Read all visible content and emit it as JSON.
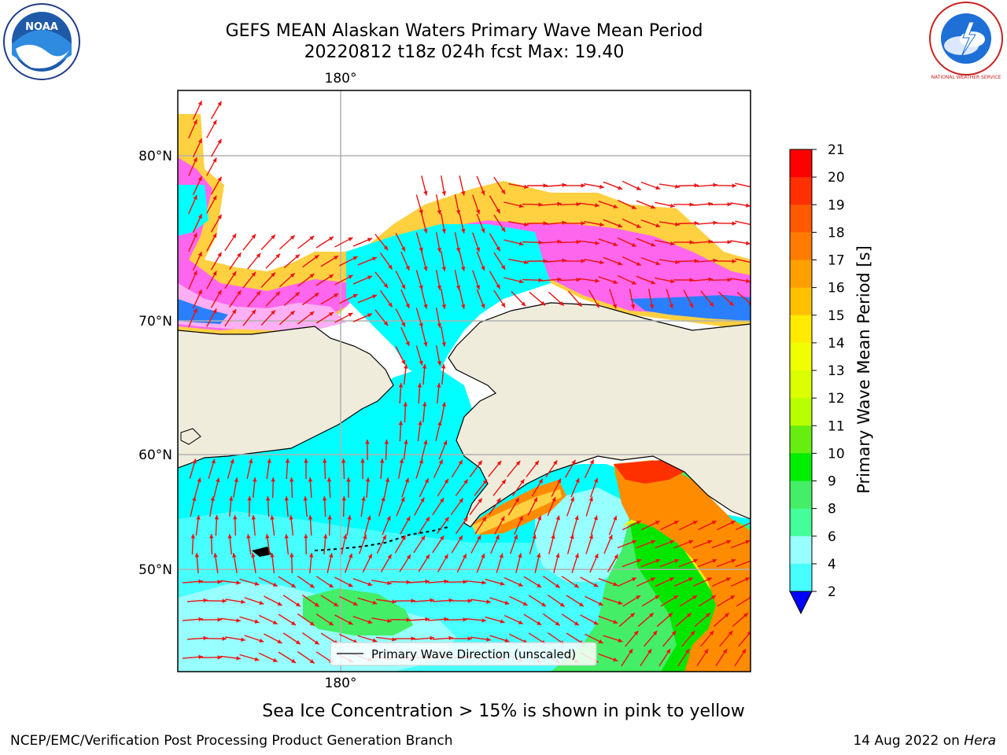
{
  "header": {
    "title_line1": "GEFS MEAN Alaskan Waters Primary Wave Mean Period",
    "title_line2": "20220812 t18z 024h fcst   Max: 19.40"
  },
  "logos": {
    "left": "NOAA",
    "right": "NATIONAL WEATHER SERVICE"
  },
  "map": {
    "lon_label_top": "180°",
    "lon_label_bottom": "180°",
    "lat_labels": [
      "80°N",
      "70°N",
      "60°N",
      "50°N"
    ],
    "legend_label": "Primary Wave Direction (unscaled)",
    "colors": {
      "land": "#efecdc",
      "ocean_cyan": "#00ffff",
      "ocean_light": "#97ffff",
      "ocean_mid": "#47ffff",
      "green": "#44ee66",
      "bright_green": "#00e600",
      "orange": "#ff8c00",
      "red_orange": "#ff4500",
      "ice_pink": "#ff55ee",
      "ice_yellow": "#ffd040",
      "arrow": "#ee1111",
      "grid": "#b0b0b0"
    }
  },
  "colorbar": {
    "label": "Primary Wave Mean Period [s]",
    "ticks": [
      "21",
      "20",
      "19",
      "18",
      "17",
      "16",
      "15",
      "14",
      "13",
      "12",
      "11",
      "10",
      "9",
      "8",
      "6",
      "4",
      "2"
    ],
    "colors": [
      "#ff0000",
      "#ff3000",
      "#ff5a00",
      "#ff7c00",
      "#ff9f00",
      "#ffc000",
      "#ffeb00",
      "#f0ff00",
      "#d9ff00",
      "#b8ff00",
      "#66ee11",
      "#00ee00",
      "#44ee66",
      "#44ff99",
      "#97ffff",
      "#47ffff",
      "#00ffff",
      "#0077ff",
      "#0000ff"
    ]
  },
  "ice_note": "Sea Ice Concentration > 15% is shown in pink to yellow",
  "footer": {
    "left": "NCEP/EMC/Verification Post Processing Product Generation Branch",
    "date": "14 Aug 2022 on",
    "machine": "Hera"
  }
}
